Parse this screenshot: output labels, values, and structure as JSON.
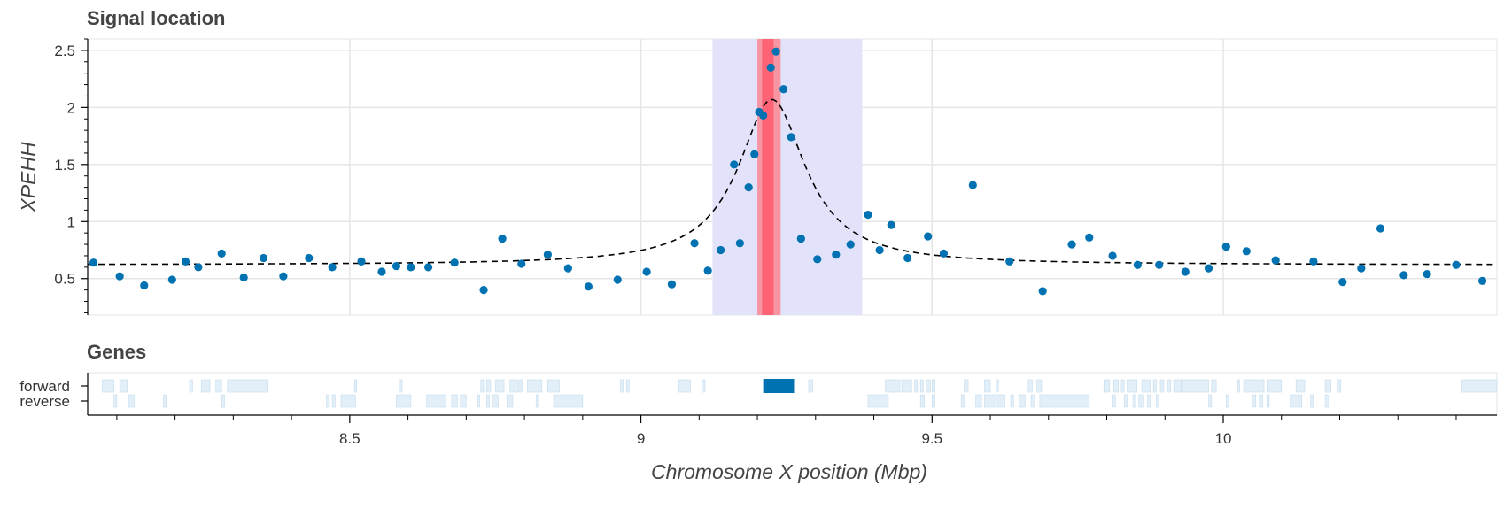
{
  "chart_data": [
    {
      "type": "scatter",
      "title": "Signal location",
      "ylabel": "XPEHH",
      "xlim": [
        8.05,
        10.47
      ],
      "ylim": [
        0.18,
        2.6
      ],
      "yticks": [
        {
          "value": 0.5,
          "label": "0.5"
        },
        {
          "value": 1,
          "label": "1"
        },
        {
          "value": 1.5,
          "label": "1.5"
        },
        {
          "value": 2,
          "label": "2"
        },
        {
          "value": 2.5,
          "label": "2.5"
        }
      ],
      "grid": true,
      "colors": {
        "points": "#0072b2",
        "fit": "#000000",
        "ci_band": "#e2e2fb",
        "focus_band": "#ff7b86",
        "focus_core": "#ff5c6e"
      },
      "bands": {
        "confidence_interval": [
          9.123,
          9.38
        ],
        "focus": [
          9.2,
          9.24
        ],
        "focus_core": [
          9.208,
          9.228
        ]
      },
      "fit_curve": {
        "shape": "peak",
        "center": 9.225,
        "baseline": 0.62,
        "peak": 2.07,
        "width": 0.07
      },
      "points": [
        {
          "x": 8.06,
          "y": 0.64
        },
        {
          "x": 8.105,
          "y": 0.52
        },
        {
          "x": 8.147,
          "y": 0.44
        },
        {
          "x": 8.195,
          "y": 0.49
        },
        {
          "x": 8.218,
          "y": 0.65
        },
        {
          "x": 8.24,
          "y": 0.6
        },
        {
          "x": 8.28,
          "y": 0.72
        },
        {
          "x": 8.318,
          "y": 0.51
        },
        {
          "x": 8.352,
          "y": 0.68
        },
        {
          "x": 8.386,
          "y": 0.52
        },
        {
          "x": 8.43,
          "y": 0.68
        },
        {
          "x": 8.47,
          "y": 0.6
        },
        {
          "x": 8.52,
          "y": 0.65
        },
        {
          "x": 8.555,
          "y": 0.56
        },
        {
          "x": 8.58,
          "y": 0.61
        },
        {
          "x": 8.605,
          "y": 0.6
        },
        {
          "x": 8.635,
          "y": 0.6
        },
        {
          "x": 8.68,
          "y": 0.64
        },
        {
          "x": 8.73,
          "y": 0.4
        },
        {
          "x": 8.762,
          "y": 0.85
        },
        {
          "x": 8.795,
          "y": 0.63
        },
        {
          "x": 8.84,
          "y": 0.71
        },
        {
          "x": 8.875,
          "y": 0.59
        },
        {
          "x": 8.91,
          "y": 0.43
        },
        {
          "x": 8.96,
          "y": 0.49
        },
        {
          "x": 9.01,
          "y": 0.56
        },
        {
          "x": 9.053,
          "y": 0.45
        },
        {
          "x": 9.092,
          "y": 0.81
        },
        {
          "x": 9.115,
          "y": 0.57
        },
        {
          "x": 9.137,
          "y": 0.75
        },
        {
          "x": 9.16,
          "y": 1.5
        },
        {
          "x": 9.17,
          "y": 0.81
        },
        {
          "x": 9.185,
          "y": 1.3
        },
        {
          "x": 9.195,
          "y": 1.59
        },
        {
          "x": 9.203,
          "y": 1.96
        },
        {
          "x": 9.21,
          "y": 1.93
        },
        {
          "x": 9.223,
          "y": 2.35
        },
        {
          "x": 9.232,
          "y": 2.49
        },
        {
          "x": 9.245,
          "y": 2.16
        },
        {
          "x": 9.258,
          "y": 1.74
        },
        {
          "x": 9.275,
          "y": 0.85
        },
        {
          "x": 9.303,
          "y": 0.67
        },
        {
          "x": 9.335,
          "y": 0.71
        },
        {
          "x": 9.36,
          "y": 0.8
        },
        {
          "x": 9.39,
          "y": 1.06
        },
        {
          "x": 9.41,
          "y": 0.75
        },
        {
          "x": 9.43,
          "y": 0.97
        },
        {
          "x": 9.458,
          "y": 0.68
        },
        {
          "x": 9.493,
          "y": 0.87
        },
        {
          "x": 9.52,
          "y": 0.72
        },
        {
          "x": 9.57,
          "y": 1.32
        },
        {
          "x": 9.633,
          "y": 0.65
        },
        {
          "x": 9.69,
          "y": 0.39
        },
        {
          "x": 9.74,
          "y": 0.8
        },
        {
          "x": 9.77,
          "y": 0.86
        },
        {
          "x": 9.81,
          "y": 0.7
        },
        {
          "x": 9.853,
          "y": 0.62
        },
        {
          "x": 9.89,
          "y": 0.62
        },
        {
          "x": 9.935,
          "y": 0.56
        },
        {
          "x": 9.975,
          "y": 0.59
        },
        {
          "x": 10.005,
          "y": 0.78
        },
        {
          "x": 10.04,
          "y": 0.74
        },
        {
          "x": 10.09,
          "y": 0.66
        },
        {
          "x": 10.155,
          "y": 0.65
        },
        {
          "x": 10.205,
          "y": 0.47
        },
        {
          "x": 10.237,
          "y": 0.59
        },
        {
          "x": 10.27,
          "y": 0.94
        },
        {
          "x": 10.31,
          "y": 0.53
        },
        {
          "x": 10.35,
          "y": 0.54
        },
        {
          "x": 10.4,
          "y": 0.62
        },
        {
          "x": 10.445,
          "y": 0.48
        }
      ]
    },
    {
      "type": "gantt",
      "title": "Genes",
      "xlabel": "Chromosome X position (Mbp)",
      "xlim": [
        8.05,
        10.47
      ],
      "xticks": [
        {
          "value": 8.5,
          "label": "8.5"
        },
        {
          "value": 9,
          "label": "9"
        },
        {
          "value": 9.5,
          "label": "9.5"
        },
        {
          "value": 10,
          "label": "10"
        }
      ],
      "tracks": [
        "forward",
        "reverse"
      ],
      "colors": {
        "gene": "#e3eff8",
        "gene_edge": "#c4dced",
        "highlight": "#0072b2"
      },
      "genes": [
        {
          "track": "forward",
          "start": 8.075,
          "end": 8.095
        },
        {
          "track": "forward",
          "start": 8.105,
          "end": 8.118
        },
        {
          "track": "forward",
          "start": 8.225,
          "end": 8.23
        },
        {
          "track": "forward",
          "start": 8.245,
          "end": 8.26
        },
        {
          "track": "forward",
          "start": 8.27,
          "end": 8.28
        },
        {
          "track": "forward",
          "start": 8.29,
          "end": 8.36
        },
        {
          "track": "forward",
          "start": 8.508,
          "end": 8.512
        },
        {
          "track": "forward",
          "start": 8.585,
          "end": 8.59
        },
        {
          "track": "forward",
          "start": 8.725,
          "end": 8.73
        },
        {
          "track": "forward",
          "start": 8.735,
          "end": 8.742
        },
        {
          "track": "forward",
          "start": 8.75,
          "end": 8.765
        },
        {
          "track": "forward",
          "start": 8.775,
          "end": 8.79
        },
        {
          "track": "forward",
          "start": 8.792,
          "end": 8.796
        },
        {
          "track": "forward",
          "start": 8.805,
          "end": 8.83
        },
        {
          "track": "forward",
          "start": 8.84,
          "end": 8.86
        },
        {
          "track": "forward",
          "start": 8.965,
          "end": 8.97
        },
        {
          "track": "forward",
          "start": 8.975,
          "end": 8.98
        },
        {
          "track": "forward",
          "start": 9.065,
          "end": 9.085
        },
        {
          "track": "forward",
          "start": 9.105,
          "end": 9.11
        },
        {
          "track": "forward",
          "start": 9.288,
          "end": 9.295
        },
        {
          "track": "forward",
          "start": 9.42,
          "end": 9.445
        },
        {
          "track": "forward",
          "start": 9.448,
          "end": 9.465
        },
        {
          "track": "forward",
          "start": 9.47,
          "end": 9.475
        },
        {
          "track": "forward",
          "start": 9.48,
          "end": 9.485
        },
        {
          "track": "forward",
          "start": 9.49,
          "end": 9.497
        },
        {
          "track": "forward",
          "start": 9.5,
          "end": 9.505
        },
        {
          "track": "forward",
          "start": 9.555,
          "end": 9.562
        },
        {
          "track": "forward",
          "start": 9.59,
          "end": 9.6
        },
        {
          "track": "forward",
          "start": 9.61,
          "end": 9.614
        },
        {
          "track": "forward",
          "start": 9.665,
          "end": 9.672
        },
        {
          "track": "forward",
          "start": 9.68,
          "end": 9.688
        },
        {
          "track": "forward",
          "start": 9.795,
          "end": 9.805
        },
        {
          "track": "forward",
          "start": 9.812,
          "end": 9.82
        },
        {
          "track": "forward",
          "start": 9.825,
          "end": 9.83
        },
        {
          "track": "forward",
          "start": 9.835,
          "end": 9.852
        },
        {
          "track": "forward",
          "start": 9.86,
          "end": 9.875
        },
        {
          "track": "forward",
          "start": 9.88,
          "end": 9.885
        },
        {
          "track": "forward",
          "start": 9.892,
          "end": 9.898
        },
        {
          "track": "forward",
          "start": 9.905,
          "end": 9.91
        },
        {
          "track": "forward",
          "start": 9.915,
          "end": 9.928
        },
        {
          "track": "forward",
          "start": 9.93,
          "end": 9.975
        },
        {
          "track": "forward",
          "start": 9.98,
          "end": 9.988
        },
        {
          "track": "forward",
          "start": 10.025,
          "end": 10.028
        },
        {
          "track": "forward",
          "start": 10.035,
          "end": 10.07
        },
        {
          "track": "forward",
          "start": 10.075,
          "end": 10.1
        },
        {
          "track": "forward",
          "start": 10.125,
          "end": 10.14
        },
        {
          "track": "forward",
          "start": 10.175,
          "end": 10.185
        },
        {
          "track": "forward",
          "start": 10.195,
          "end": 10.202
        },
        {
          "track": "forward",
          "start": 10.41,
          "end": 10.47
        },
        {
          "track": "reverse",
          "start": 8.095,
          "end": 8.1
        },
        {
          "track": "reverse",
          "start": 8.12,
          "end": 8.13
        },
        {
          "track": "reverse",
          "start": 8.18,
          "end": 8.185
        },
        {
          "track": "reverse",
          "start": 8.28,
          "end": 8.285
        },
        {
          "track": "reverse",
          "start": 8.46,
          "end": 8.465
        },
        {
          "track": "reverse",
          "start": 8.47,
          "end": 8.475
        },
        {
          "track": "reverse",
          "start": 8.485,
          "end": 8.51
        },
        {
          "track": "reverse",
          "start": 8.58,
          "end": 8.605
        },
        {
          "track": "reverse",
          "start": 8.632,
          "end": 8.665
        },
        {
          "track": "reverse",
          "start": 8.675,
          "end": 8.685
        },
        {
          "track": "reverse",
          "start": 8.69,
          "end": 8.7
        },
        {
          "track": "reverse",
          "start": 8.72,
          "end": 8.722
        },
        {
          "track": "reverse",
          "start": 8.735,
          "end": 8.74
        },
        {
          "track": "reverse",
          "start": 8.745,
          "end": 8.755
        },
        {
          "track": "reverse",
          "start": 8.77,
          "end": 8.78
        },
        {
          "track": "reverse",
          "start": 8.82,
          "end": 8.825
        },
        {
          "track": "reverse",
          "start": 8.85,
          "end": 8.9
        },
        {
          "track": "reverse",
          "start": 9.39,
          "end": 9.425
        },
        {
          "track": "reverse",
          "start": 9.48,
          "end": 9.487
        },
        {
          "track": "reverse",
          "start": 9.5,
          "end": 9.505
        },
        {
          "track": "reverse",
          "start": 9.55,
          "end": 9.555
        },
        {
          "track": "reverse",
          "start": 9.575,
          "end": 9.585
        },
        {
          "track": "reverse",
          "start": 9.59,
          "end": 9.61
        },
        {
          "track": "reverse",
          "start": 9.612,
          "end": 9.625
        },
        {
          "track": "reverse",
          "start": 9.635,
          "end": 9.64
        },
        {
          "track": "reverse",
          "start": 9.65,
          "end": 9.66
        },
        {
          "track": "reverse",
          "start": 9.67,
          "end": 9.675
        },
        {
          "track": "reverse",
          "start": 9.685,
          "end": 9.77
        },
        {
          "track": "reverse",
          "start": 9.81,
          "end": 9.815
        },
        {
          "track": "reverse",
          "start": 9.83,
          "end": 9.835
        },
        {
          "track": "reverse",
          "start": 9.845,
          "end": 9.85
        },
        {
          "track": "reverse",
          "start": 9.855,
          "end": 9.862
        },
        {
          "track": "reverse",
          "start": 9.87,
          "end": 9.875
        },
        {
          "track": "reverse",
          "start": 9.885,
          "end": 9.89
        },
        {
          "track": "reverse",
          "start": 9.975,
          "end": 9.98
        },
        {
          "track": "reverse",
          "start": 10.005,
          "end": 10.01
        },
        {
          "track": "reverse",
          "start": 10.05,
          "end": 10.056
        },
        {
          "track": "reverse",
          "start": 10.062,
          "end": 10.068
        },
        {
          "track": "reverse",
          "start": 10.075,
          "end": 10.079
        },
        {
          "track": "reverse",
          "start": 10.115,
          "end": 10.135
        },
        {
          "track": "reverse",
          "start": 10.15,
          "end": 10.155
        },
        {
          "track": "reverse",
          "start": 10.175,
          "end": 10.18
        }
      ],
      "highlight_gene": {
        "track": "forward",
        "start": 9.21,
        "end": 9.263
      }
    }
  ]
}
